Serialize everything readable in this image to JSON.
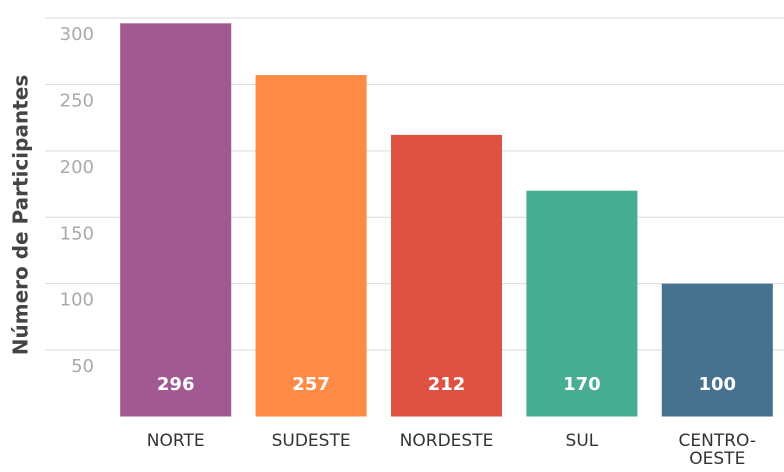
{
  "chart_data": {
    "type": "bar",
    "ylabel": "Número de Participantes",
    "categories": [
      "NORTE",
      "SUDESTE",
      "NORDESTE",
      "SUL",
      "CENTRO-OESTE"
    ],
    "values": [
      296,
      257,
      212,
      170,
      100
    ],
    "colors": [
      "#a05a91",
      "#fd8b45",
      "#de5243",
      "#47ae94",
      "#46718f"
    ],
    "ylim": [
      0,
      300
    ],
    "yticks": [
      50,
      100,
      150,
      200,
      250,
      300
    ],
    "grid": true
  }
}
